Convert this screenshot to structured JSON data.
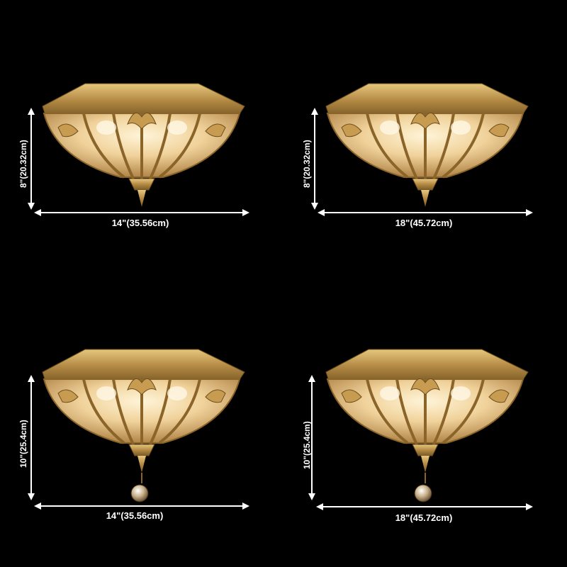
{
  "variants": [
    {
      "height_label": "8\"(20.32cm)",
      "width_label": "14\"(35.56cm)",
      "crystal": false
    },
    {
      "height_label": "8\"(20.32cm)",
      "width_label": "18\"(45.72cm)",
      "crystal": false
    },
    {
      "height_label": "10\"(25.4cm)",
      "width_label": "14\"(35.56cm)",
      "crystal": true
    },
    {
      "height_label": "10\"(25.4cm)",
      "width_label": "18\"(45.72cm)",
      "crystal": true
    }
  ],
  "colors": {
    "background": "#000000",
    "brass": "#b8924a",
    "glass": "#f2d9a8",
    "dimension_line": "#ffffff"
  }
}
